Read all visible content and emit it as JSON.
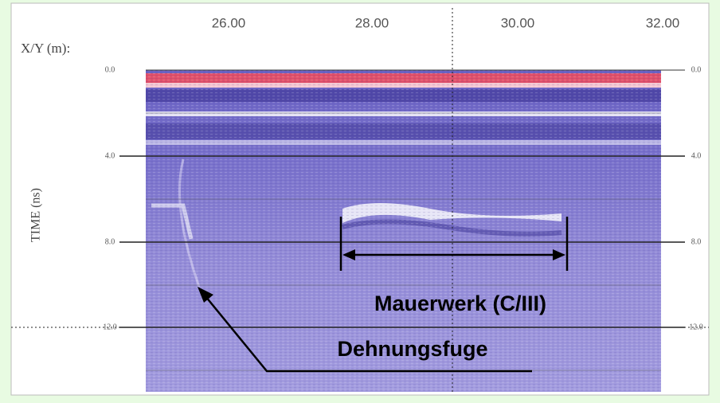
{
  "header": {
    "axis_label": "X/Y (m):"
  },
  "x_ticks": [
    "26.00",
    "28.00",
    "30.00",
    "32.00"
  ],
  "y_axis": {
    "label": "TIME (ns)",
    "left_ticks": [
      "0.0",
      "4.0",
      "8.0",
      "12.0"
    ],
    "right_ticks": [
      "0.0",
      "4.0",
      "8.0",
      "12.0"
    ]
  },
  "annotations": {
    "structure": "Mauerwerk (C/III)",
    "joint": "Dehnungsfuge"
  }
}
